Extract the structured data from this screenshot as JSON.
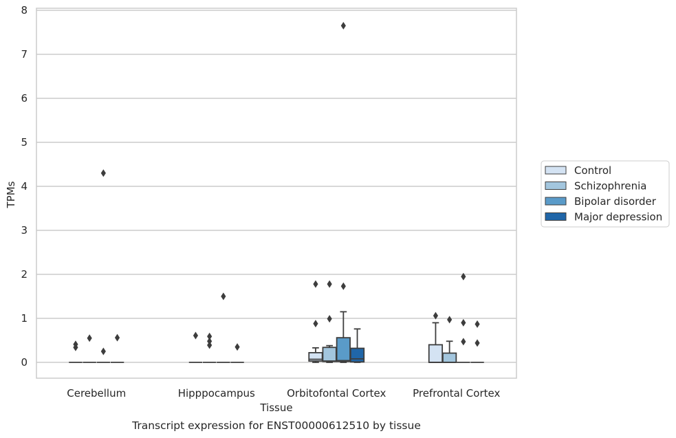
{
  "chart_data": {
    "type": "box",
    "xlabel": "Tissue",
    "ylabel": "TPMs",
    "caption": "Transcript expression for ENST00000612510 by tissue",
    "ylim": [
      -0.35,
      8.05
    ],
    "yticks": [
      0,
      1,
      2,
      3,
      4,
      5,
      6,
      7,
      8
    ],
    "grid": "horizontal",
    "legend_position": "right",
    "categories": [
      "Cerebellum",
      "Hipppocampus",
      "Orbitofontal Cortex",
      "Prefrontal Cortex"
    ],
    "series": [
      {
        "name": "Control",
        "color": "#d4e3f3",
        "boxes": [
          {
            "q1": 0,
            "median": 0,
            "q3": 0,
            "whisker_low": 0,
            "whisker_high": 0,
            "outliers": [
              0.34,
              0.41
            ]
          },
          {
            "q1": 0,
            "median": 0,
            "q3": 0,
            "whisker_low": 0,
            "whisker_high": 0,
            "outliers": [
              0.61
            ]
          },
          {
            "q1": 0.03,
            "median": 0.07,
            "q3": 0.22,
            "whisker_low": 0,
            "whisker_high": 0.33,
            "outliers": [
              0.88,
              1.78
            ]
          },
          {
            "q1": 0,
            "median": 0,
            "q3": 0.4,
            "whisker_low": 0,
            "whisker_high": 0.9,
            "outliers": [
              1.06
            ]
          }
        ]
      },
      {
        "name": "Schizophrenia",
        "color": "#a3c6de",
        "boxes": [
          {
            "q1": 0,
            "median": 0,
            "q3": 0,
            "whisker_low": 0,
            "whisker_high": 0,
            "outliers": [
              0.55
            ]
          },
          {
            "q1": 0,
            "median": 0,
            "q3": 0,
            "whisker_low": 0,
            "whisker_high": 0,
            "outliers": [
              0.39,
              0.48,
              0.59
            ]
          },
          {
            "q1": 0.02,
            "median": 0.03,
            "q3": 0.34,
            "whisker_low": 0,
            "whisker_high": 0.38,
            "outliers": [
              0.99,
              1.78
            ]
          },
          {
            "q1": 0,
            "median": 0,
            "q3": 0.21,
            "whisker_low": 0,
            "whisker_high": 0.48,
            "outliers": [
              0.97
            ]
          }
        ]
      },
      {
        "name": "Bipolar disorder",
        "color": "#5a9bc9",
        "boxes": [
          {
            "q1": 0,
            "median": 0,
            "q3": 0,
            "whisker_low": 0,
            "whisker_high": 0,
            "outliers": [
              0.25,
              4.3
            ]
          },
          {
            "q1": 0,
            "median": 0,
            "q3": 0,
            "whisker_low": 0,
            "whisker_high": 0,
            "outliers": [
              1.5
            ]
          },
          {
            "q1": 0.02,
            "median": 0.04,
            "q3": 0.56,
            "whisker_low": 0,
            "whisker_high": 1.15,
            "outliers": [
              1.73,
              7.65
            ]
          },
          {
            "q1": 0,
            "median": 0,
            "q3": 0,
            "whisker_low": 0,
            "whisker_high": 0,
            "outliers": [
              0.47,
              0.9,
              1.95
            ]
          }
        ]
      },
      {
        "name": "Major depression",
        "color": "#2066a8",
        "boxes": [
          {
            "q1": 0,
            "median": 0,
            "q3": 0,
            "whisker_low": 0,
            "whisker_high": 0,
            "outliers": [
              0.56
            ]
          },
          {
            "q1": 0,
            "median": 0,
            "q3": 0,
            "whisker_low": 0,
            "whisker_high": 0,
            "outliers": [
              0.35
            ]
          },
          {
            "q1": 0.01,
            "median": 0.08,
            "q3": 0.32,
            "whisker_low": 0,
            "whisker_high": 0.76,
            "outliers": []
          },
          {
            "q1": 0,
            "median": 0,
            "q3": 0,
            "whisker_low": 0,
            "whisker_high": 0,
            "outliers": [
              0.44,
              0.87
            ]
          }
        ]
      }
    ]
  }
}
